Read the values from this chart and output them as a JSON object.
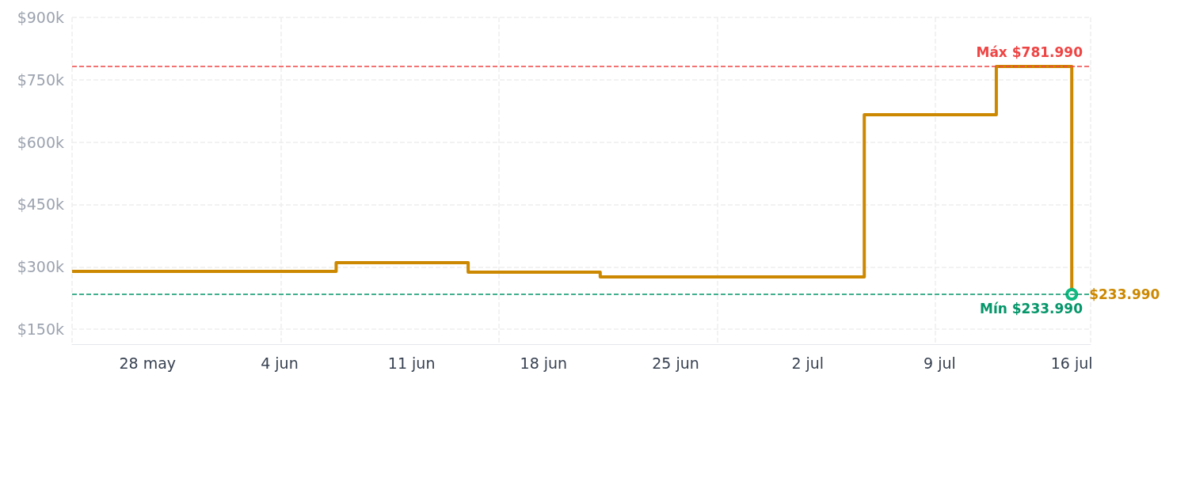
{
  "chart_data": {
    "type": "step",
    "x": [
      "--05-24",
      "--06-07",
      "--06-14",
      "--06-21",
      "--07-05",
      "--07-12",
      "--07-16"
    ],
    "series": [
      {
        "color": "#cc8800",
        "values": [
          289,
          310,
          287,
          276,
          666,
          781.99,
          233.99
        ],
        "value_labels": [
          null,
          null,
          null,
          null,
          null,
          null,
          "$233.990"
        ]
      }
    ],
    "xlim": [
      "--05-24",
      "--07-17"
    ],
    "xticks": [
      {
        "value": "--05-28",
        "label": "28 may"
      },
      {
        "value": "--06-04",
        "label": "4 jun"
      },
      {
        "value": "--06-11",
        "label": "11 jun"
      },
      {
        "value": "--06-18",
        "label": "18 jun"
      },
      {
        "value": "--06-25",
        "label": "25 jun"
      },
      {
        "value": "--07-02",
        "label": "2 jul"
      },
      {
        "value": "--07-09",
        "label": "9 jul"
      },
      {
        "value": "--07-16",
        "label": "16 jul"
      }
    ],
    "ylim": [
      114,
      900
    ],
    "yticks": [
      {
        "value": 150,
        "label": "$150k"
      },
      {
        "value": 300,
        "label": "$300k"
      },
      {
        "value": 450,
        "label": "$450k"
      },
      {
        "value": 600,
        "label": "$600k"
      },
      {
        "value": 750,
        "label": "$750k"
      },
      {
        "value": 900,
        "label": "$900k"
      }
    ],
    "ref_lines": [
      {
        "axis": "y",
        "value": 781.99,
        "label": "Máx $781.990",
        "color": "#ef4444",
        "line_style": "dashed"
      },
      {
        "axis": "y",
        "value": 233.99,
        "label": "Mín $233.990",
        "color": "#059669",
        "line_style": "dashed"
      }
    ],
    "grid": true,
    "line_style": "solid"
  }
}
